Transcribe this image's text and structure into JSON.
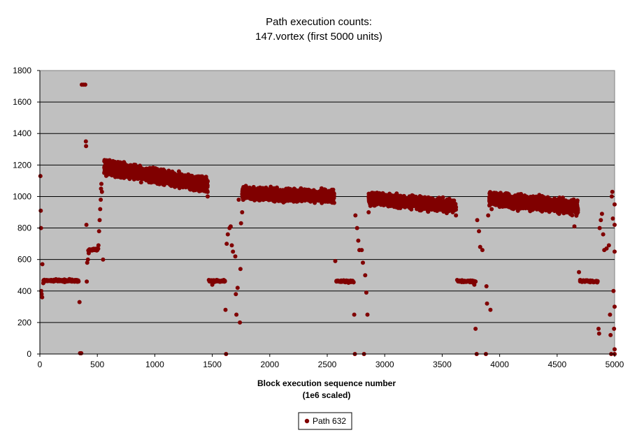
{
  "chart_data": {
    "type": "scatter",
    "title": [
      "Path execution counts:",
      "147.vortex (first 5000 units)"
    ],
    "xlabel": [
      "Block execution sequence number",
      "(1e6 scaled)"
    ],
    "ylabel": "",
    "xlim": [
      0,
      5000
    ],
    "ylim": [
      0,
      1800
    ],
    "xticks": [
      0,
      500,
      1000,
      1500,
      2000,
      2500,
      3000,
      3500,
      4000,
      4500,
      5000
    ],
    "yticks": [
      0,
      200,
      400,
      600,
      800,
      1000,
      1200,
      1400,
      1600,
      1800
    ],
    "grid": "horizontal",
    "plot_background": "#c0c0c0",
    "legend": {
      "position": "bottom-center",
      "entries": [
        "Path 632"
      ]
    },
    "series": [
      {
        "name": "Path 632",
        "color": "#800000",
        "points": [
          [
            5,
            1130
          ],
          [
            8,
            910
          ],
          [
            10,
            800
          ],
          [
            12,
            400
          ],
          [
            15,
            380
          ],
          [
            20,
            360
          ],
          [
            22,
            570
          ],
          [
            30,
            450
          ],
          [
            40,
            460
          ],
          [
            60,
            470
          ],
          [
            80,
            465
          ],
          [
            100,
            470
          ],
          [
            120,
            460
          ],
          [
            140,
            475
          ],
          [
            160,
            465
          ],
          [
            180,
            470
          ],
          [
            200,
            460
          ],
          [
            220,
            470
          ],
          [
            240,
            465
          ],
          [
            260,
            470
          ],
          [
            280,
            460
          ],
          [
            300,
            465
          ],
          [
            320,
            470
          ],
          [
            335,
            460
          ],
          [
            345,
            330
          ],
          [
            350,
            5
          ],
          [
            360,
            5
          ],
          [
            365,
            1710
          ],
          [
            380,
            1710
          ],
          [
            395,
            1710
          ],
          [
            400,
            1350
          ],
          [
            402,
            1320
          ],
          [
            405,
            820
          ],
          [
            408,
            460
          ],
          [
            412,
            580
          ],
          [
            418,
            600
          ],
          [
            425,
            640
          ],
          [
            440,
            660
          ],
          [
            460,
            665
          ],
          [
            480,
            665
          ],
          [
            500,
            660
          ],
          [
            510,
            690
          ],
          [
            515,
            780
          ],
          [
            520,
            850
          ],
          [
            525,
            920
          ],
          [
            530,
            980
          ],
          [
            532,
            1050
          ],
          [
            535,
            1080
          ],
          [
            540,
            1030
          ],
          [
            550,
            600
          ],
          [
            560,
            1150
          ],
          [
            570,
            1200
          ],
          [
            580,
            1230
          ],
          [
            600,
            1180
          ],
          [
            620,
            1210
          ],
          [
            650,
            1170
          ],
          [
            680,
            1200
          ],
          [
            700,
            1160
          ],
          [
            730,
            1190
          ],
          [
            760,
            1150
          ],
          [
            800,
            1180
          ],
          [
            830,
            1140
          ],
          [
            860,
            1170
          ],
          [
            900,
            1120
          ],
          [
            930,
            1160
          ],
          [
            960,
            1130
          ],
          [
            1000,
            1150
          ],
          [
            1030,
            1120
          ],
          [
            1060,
            1140
          ],
          [
            1100,
            1100
          ],
          [
            1130,
            1130
          ],
          [
            1160,
            1090
          ],
          [
            1200,
            1120
          ],
          [
            1230,
            1080
          ],
          [
            1260,
            1110
          ],
          [
            1300,
            1070
          ],
          [
            1330,
            1100
          ],
          [
            1360,
            1060
          ],
          [
            1390,
            1090
          ],
          [
            1420,
            1050
          ],
          [
            1440,
            1080
          ],
          [
            1460,
            1000
          ],
          [
            1470,
            470
          ],
          [
            1480,
            460
          ],
          [
            1500,
            440
          ],
          [
            1520,
            465
          ],
          [
            1540,
            470
          ],
          [
            1560,
            460
          ],
          [
            1580,
            465
          ],
          [
            1600,
            470
          ],
          [
            1615,
            280
          ],
          [
            1620,
            0
          ],
          [
            1625,
            700
          ],
          [
            1635,
            760
          ],
          [
            1650,
            800
          ],
          [
            1660,
            810
          ],
          [
            1670,
            690
          ],
          [
            1680,
            650
          ],
          [
            1700,
            620
          ],
          [
            1705,
            380
          ],
          [
            1710,
            250
          ],
          [
            1720,
            420
          ],
          [
            1730,
            980
          ],
          [
            1740,
            200
          ],
          [
            1745,
            540
          ],
          [
            1750,
            830
          ],
          [
            1760,
            900
          ],
          [
            1780,
            1000
          ],
          [
            1800,
            1050
          ],
          [
            1830,
            1020
          ],
          [
            1860,
            1060
          ],
          [
            1900,
            1000
          ],
          [
            1930,
            1050
          ],
          [
            1960,
            1010
          ],
          [
            2000,
            1040
          ],
          [
            2030,
            990
          ],
          [
            2060,
            1050
          ],
          [
            2100,
            1000
          ],
          [
            2130,
            1040
          ],
          [
            2160,
            990
          ],
          [
            2200,
            1030
          ],
          [
            2230,
            1000
          ],
          [
            2260,
            1040
          ],
          [
            2300,
            990
          ],
          [
            2330,
            1030
          ],
          [
            2360,
            980
          ],
          [
            2400,
            1020
          ],
          [
            2430,
            990
          ],
          [
            2460,
            1010
          ],
          [
            2500,
            980
          ],
          [
            2530,
            1000
          ],
          [
            2560,
            960
          ],
          [
            2570,
            590
          ],
          [
            2580,
            460
          ],
          [
            2600,
            460
          ],
          [
            2620,
            465
          ],
          [
            2650,
            460
          ],
          [
            2680,
            465
          ],
          [
            2700,
            460
          ],
          [
            2720,
            465
          ],
          [
            2735,
            250
          ],
          [
            2740,
            0
          ],
          [
            2745,
            880
          ],
          [
            2760,
            800
          ],
          [
            2770,
            720
          ],
          [
            2780,
            660
          ],
          [
            2800,
            660
          ],
          [
            2810,
            580
          ],
          [
            2820,
            0
          ],
          [
            2830,
            500
          ],
          [
            2840,
            390
          ],
          [
            2850,
            250
          ],
          [
            2860,
            900
          ],
          [
            2880,
            960
          ],
          [
            2900,
            1000
          ],
          [
            2930,
            970
          ],
          [
            2960,
            1010
          ],
          [
            3000,
            980
          ],
          [
            3030,
            1000
          ],
          [
            3060,
            960
          ],
          [
            3100,
            990
          ],
          [
            3130,
            950
          ],
          [
            3160,
            1000
          ],
          [
            3200,
            960
          ],
          [
            3230,
            990
          ],
          [
            3260,
            940
          ],
          [
            3300,
            980
          ],
          [
            3330,
            950
          ],
          [
            3360,
            970
          ],
          [
            3400,
            930
          ],
          [
            3430,
            970
          ],
          [
            3460,
            940
          ],
          [
            3500,
            960
          ],
          [
            3530,
            920
          ],
          [
            3560,
            950
          ],
          [
            3600,
            920
          ],
          [
            3620,
            880
          ],
          [
            3630,
            470
          ],
          [
            3650,
            460
          ],
          [
            3680,
            465
          ],
          [
            3700,
            460
          ],
          [
            3720,
            465
          ],
          [
            3740,
            460
          ],
          [
            3760,
            465
          ],
          [
            3780,
            440
          ],
          [
            3790,
            160
          ],
          [
            3800,
            0
          ],
          [
            3805,
            850
          ],
          [
            3820,
            780
          ],
          [
            3830,
            680
          ],
          [
            3850,
            660
          ],
          [
            3880,
            0
          ],
          [
            3885,
            430
          ],
          [
            3890,
            320
          ],
          [
            3900,
            880
          ],
          [
            3920,
            280
          ],
          [
            3930,
            920
          ],
          [
            3960,
            1000
          ],
          [
            4000,
            960
          ],
          [
            4030,
            1000
          ],
          [
            4060,
            950
          ],
          [
            4100,
            990
          ],
          [
            4130,
            960
          ],
          [
            4160,
            1000
          ],
          [
            4200,
            950
          ],
          [
            4230,
            990
          ],
          [
            4260,
            940
          ],
          [
            4300,
            980
          ],
          [
            4330,
            950
          ],
          [
            4360,
            990
          ],
          [
            4400,
            940
          ],
          [
            4430,
            980
          ],
          [
            4460,
            950
          ],
          [
            4500,
            970
          ],
          [
            4530,
            930
          ],
          [
            4560,
            960
          ],
          [
            4600,
            920
          ],
          [
            4630,
            950
          ],
          [
            4650,
            810
          ],
          [
            4680,
            900
          ],
          [
            4690,
            520
          ],
          [
            4700,
            470
          ],
          [
            4720,
            460
          ],
          [
            4750,
            465
          ],
          [
            4780,
            460
          ],
          [
            4800,
            465
          ],
          [
            4830,
            460
          ],
          [
            4850,
            460
          ],
          [
            4860,
            160
          ],
          [
            4865,
            130
          ],
          [
            4870,
            800
          ],
          [
            4880,
            850
          ],
          [
            4890,
            890
          ],
          [
            4900,
            760
          ],
          [
            4910,
            660
          ],
          [
            4930,
            670
          ],
          [
            4950,
            690
          ],
          [
            4960,
            250
          ],
          [
            4965,
            120
          ],
          [
            4970,
            0
          ],
          [
            4975,
            1000
          ],
          [
            4980,
            1030
          ],
          [
            4985,
            860
          ],
          [
            4990,
            400
          ],
          [
            4995,
            160
          ],
          [
            5000,
            0
          ],
          [
            5002,
            650
          ],
          [
            5005,
            950
          ],
          [
            5008,
            820
          ],
          [
            5010,
            300
          ],
          [
            5012,
            30
          ]
        ],
        "bands": [
          {
            "x0": 560,
            "x1": 1460,
            "ya": 1185,
            "yb": 1075,
            "spread": 45,
            "n": 1700
          },
          {
            "x0": 1760,
            "x1": 2560,
            "ya": 1020,
            "yb": 1000,
            "spread": 40,
            "n": 1500
          },
          {
            "x0": 2860,
            "x1": 3620,
            "ya": 990,
            "yb": 935,
            "spread": 40,
            "n": 1400
          },
          {
            "x0": 3910,
            "x1": 4680,
            "ya": 985,
            "yb": 930,
            "spread": 45,
            "n": 1400
          },
          {
            "x0": 30,
            "x1": 340,
            "ya": 467,
            "yb": 465,
            "spread": 8,
            "n": 120
          },
          {
            "x0": 1470,
            "x1": 1610,
            "ya": 465,
            "yb": 462,
            "spread": 7,
            "n": 60
          },
          {
            "x0": 2580,
            "x1": 2730,
            "ya": 463,
            "yb": 460,
            "spread": 7,
            "n": 60
          },
          {
            "x0": 3630,
            "x1": 3790,
            "ya": 463,
            "yb": 460,
            "spread": 7,
            "n": 60
          },
          {
            "x0": 4700,
            "x1": 4855,
            "ya": 463,
            "yb": 460,
            "spread": 6,
            "n": 60
          },
          {
            "x0": 420,
            "x1": 510,
            "ya": 660,
            "yb": 665,
            "spread": 8,
            "n": 40
          }
        ]
      }
    ]
  }
}
